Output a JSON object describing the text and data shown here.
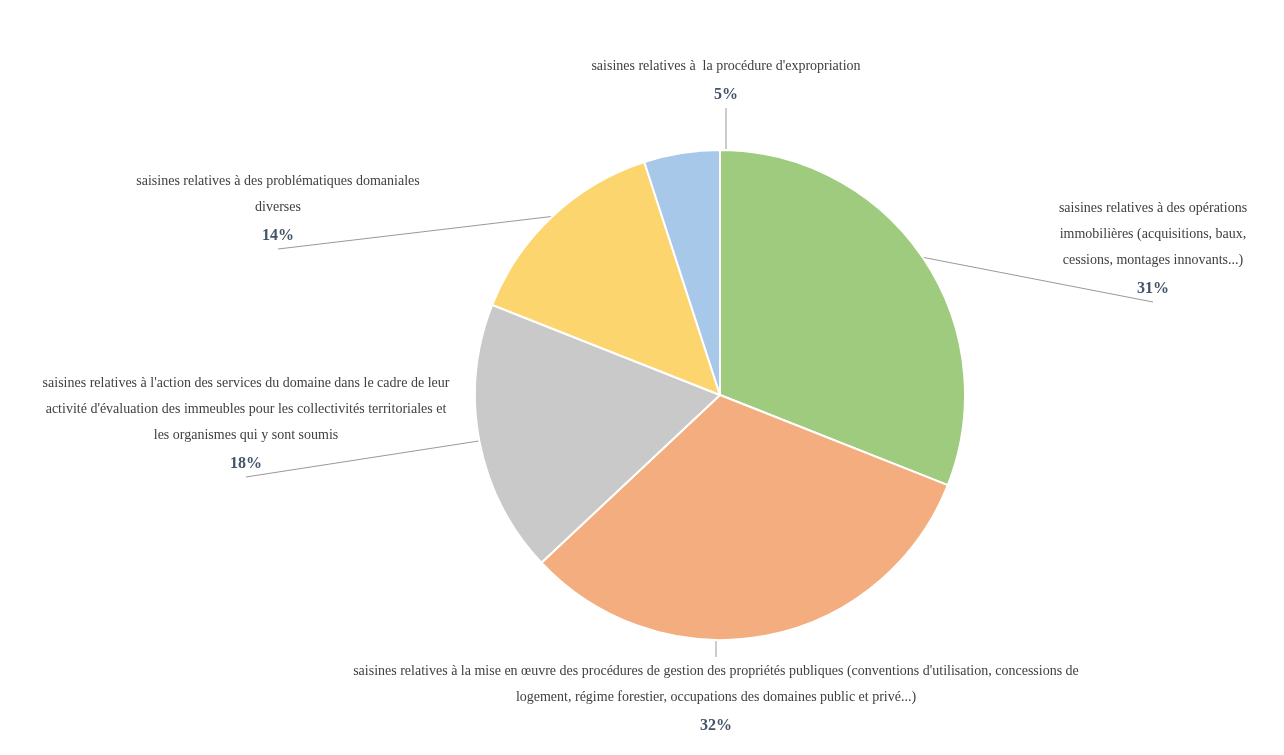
{
  "chart_data": {
    "type": "pie",
    "categories": [
      "saisines relatives à des opérations immobilières (acquisitions, baux, cessions, montages innovants...)",
      "saisines relatives à la mise en œuvre des procédures de gestion des propriétés publiques (conventions d'utilisation, concessions de logement, régime forestier, occupations des domaines public et privé...)",
      "saisines relatives à l'action des services du domaine dans le cadre de leur activité d'évaluation des immeubles pour les collectivités territoriales et les organismes qui y sont soumis",
      "saisines relatives à des problématiques domaniales diverses",
      "saisines relatives à  la procédure d'expropriation"
    ],
    "values": [
      31,
      32,
      18,
      14,
      5
    ],
    "colors": [
      "#9fcb7e",
      "#f4ad7f",
      "#c9c9c9",
      "#fdd56e",
      "#a8c8ea"
    ],
    "value_labels": [
      "31%",
      "32%",
      "18%",
      "14%",
      "5%"
    ],
    "legend": false
  }
}
